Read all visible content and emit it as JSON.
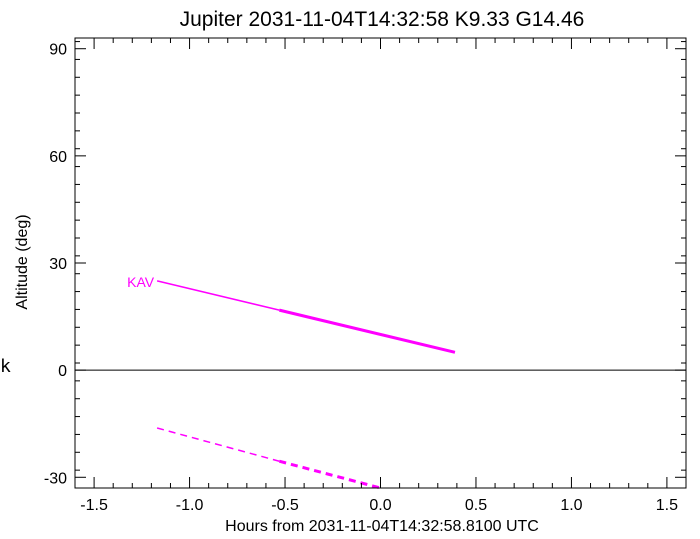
{
  "side_mark": "k",
  "chart_data": {
    "type": "line",
    "title": "Jupiter 2031-11-04T14:32:58  K9.33  G14.46",
    "xlabel": "Hours from 2031-11-04T14:32:58.8100 UTC",
    "ylabel": "Altitude (deg)",
    "xlim": [
      -1.6,
      1.6
    ],
    "ylim": [
      -33,
      93
    ],
    "x_ticks": [
      -1.5,
      -1.0,
      -0.5,
      0.0,
      0.5,
      1.0,
      1.5
    ],
    "x_tick_labels": [
      "-1.5",
      "-1.0",
      "-0.5",
      "0.0",
      "0.5",
      "1.0",
      "1.5"
    ],
    "y_ticks": [
      -30,
      0,
      30,
      60,
      90
    ],
    "y_tick_labels": [
      "-30",
      "0",
      "30",
      "60",
      "90"
    ],
    "x_minor_step": 0.1,
    "y_minor_step": 5,
    "reference_line_y": 0,
    "grid": false,
    "series_color": "#ff00ff",
    "series": [
      {
        "name": "KAV",
        "style": "solid",
        "segments": [
          {
            "x": [
              -1.17,
              -0.53
            ],
            "y": [
              25.0,
              16.8
            ],
            "width": "thin"
          },
          {
            "x": [
              -0.53,
              0.39
            ],
            "y": [
              16.8,
              5.0
            ],
            "width": "thick"
          }
        ]
      },
      {
        "style": "dashed",
        "segments": [
          {
            "x": [
              -1.17,
              -0.53
            ],
            "y": [
              -16.2,
              -25.5
            ],
            "width": "thin"
          },
          {
            "x": [
              -0.53,
              0.0
            ],
            "y": [
              -25.5,
              -33.0
            ],
            "width": "thick"
          }
        ]
      }
    ]
  }
}
